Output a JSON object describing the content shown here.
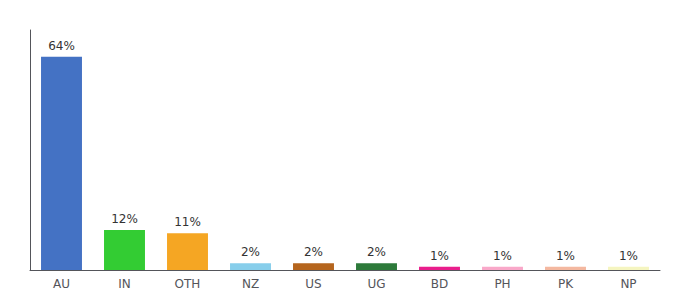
{
  "chart_data": {
    "type": "bar",
    "categories": [
      "AU",
      "IN",
      "OTH",
      "NZ",
      "US",
      "UG",
      "BD",
      "PH",
      "PK",
      "NP"
    ],
    "values": [
      64,
      12,
      11,
      2,
      2,
      2,
      1,
      1,
      1,
      1
    ],
    "value_labels": [
      "64%",
      "12%",
      "11%",
      "2%",
      "2%",
      "2%",
      "1%",
      "1%",
      "1%",
      "1%"
    ],
    "data_labels": true,
    "colors": [
      "#4472c4",
      "#33cc33",
      "#f5a623",
      "#87ceeb",
      "#b5651d",
      "#2d7a3a",
      "#e91e8c",
      "#f9a8c9",
      "#f4b8a0",
      "#f5f5c0"
    ],
    "ylim": [
      0,
      72
    ],
    "grid": false,
    "tick_labels": "x"
  }
}
